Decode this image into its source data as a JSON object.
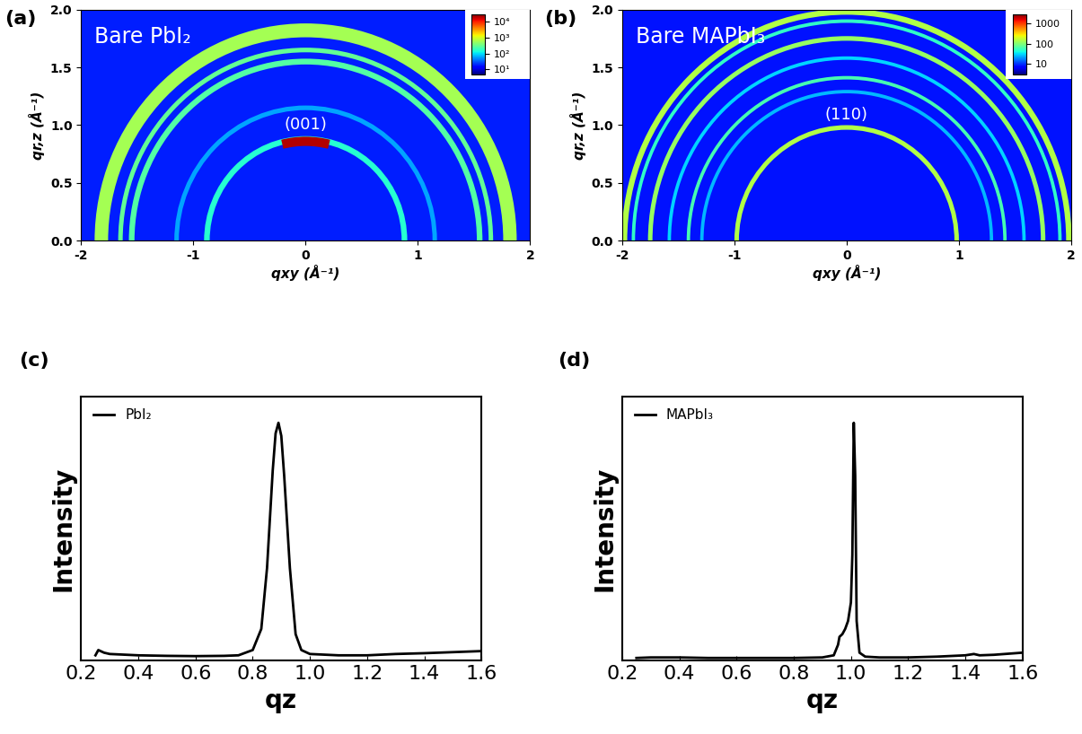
{
  "chart_data": [
    {
      "type": "ring_map",
      "panel_label": "(a)",
      "title": "Bare PbI₂",
      "x_label": "qxy (Å⁻¹)",
      "y_label": "qr,z (Å⁻¹)",
      "xlim": [
        -2,
        2
      ],
      "xticks": [
        -2,
        -1,
        0,
        1,
        2
      ],
      "ylim": [
        0,
        2
      ],
      "yticks": [
        {
          "value": 0,
          "label": "0.0"
        },
        {
          "value": 0.5,
          "label": "0.5"
        },
        {
          "value": 1,
          "label": "1.0"
        },
        {
          "value": 1.5,
          "label": "1.5"
        },
        {
          "value": 2,
          "label": "2.0"
        }
      ],
      "log": true,
      "colorbar_range": [
        5,
        30000
      ],
      "colorbar_ticks": [
        {
          "value": 10,
          "label": "10¹"
        },
        {
          "value": 100,
          "label": "10²"
        },
        {
          "value": 1000,
          "label": "10³"
        },
        {
          "value": 10000,
          "label": "10⁴"
        }
      ],
      "background": 19,
      "rings": [
        {
          "q": 0.88,
          "width": 0.05,
          "intensity": 160
        },
        {
          "q": 1.15,
          "width": 0.04,
          "intensity": 60
        },
        {
          "q": 1.55,
          "width": 0.05,
          "intensity": 250
        },
        {
          "q": 1.65,
          "width": 0.04,
          "intensity": 300
        },
        {
          "q": 1.82,
          "width": 0.12,
          "intensity": 600
        }
      ],
      "arcs": [
        {
          "q": 0.86,
          "width": 0.08,
          "angle_range": [
            76,
            104
          ],
          "intensity": 20000
        }
      ],
      "annotation": {
        "text": "(001)",
        "x": 0,
        "y": 0.93
      }
    },
    {
      "type": "ring_map",
      "panel_label": "(b)",
      "title": "Bare MAPbI₃",
      "x_label": "qxy (Å⁻¹)",
      "y_label": "qr,z (Å⁻¹)",
      "xlim": [
        -2,
        2
      ],
      "xticks": [
        -2,
        -1,
        0,
        1,
        2
      ],
      "ylim": [
        0,
        2
      ],
      "yticks": [
        {
          "value": 0,
          "label": "0.0"
        },
        {
          "value": 0.5,
          "label": "0.5"
        },
        {
          "value": 1,
          "label": "1.0"
        },
        {
          "value": 1.5,
          "label": "1.5"
        },
        {
          "value": 2,
          "label": "2.0"
        }
      ],
      "log": true,
      "colorbar_range": [
        3,
        3000
      ],
      "colorbar_ticks": [
        10,
        100,
        1000
      ],
      "background": 8,
      "rings": [
        {
          "q": 0.98,
          "width": 0.04,
          "intensity": 150
        },
        {
          "q": 1.29,
          "width": 0.03,
          "intensity": 25
        },
        {
          "q": 1.41,
          "width": 0.03,
          "intensity": 60
        },
        {
          "q": 1.58,
          "width": 0.03,
          "intensity": 30
        },
        {
          "q": 1.75,
          "width": 0.04,
          "intensity": 120
        },
        {
          "q": 1.9,
          "width": 0.03,
          "intensity": 50
        },
        {
          "q": 1.98,
          "width": 0.05,
          "intensity": 150
        }
      ],
      "arcs": [],
      "annotation": {
        "text": "(110)",
        "x": 0,
        "y": 1.02
      }
    },
    {
      "type": "line",
      "panel_label": "(c)",
      "x_label": "qz",
      "y_label": "Intensity",
      "xlim": [
        0.2,
        1.6
      ],
      "xticks": [
        0.2,
        0.4,
        0.6,
        0.8,
        1.0,
        1.2,
        1.4,
        1.6
      ],
      "ylim": [
        0,
        1
      ],
      "tick_labels": "x",
      "legend": "upper left",
      "series": [
        {
          "name": "PbI₂",
          "color": "#000000",
          "x": [
            0.25,
            0.26,
            0.28,
            0.3,
            0.4,
            0.5,
            0.6,
            0.7,
            0.75,
            0.8,
            0.83,
            0.85,
            0.87,
            0.88,
            0.89,
            0.9,
            0.91,
            0.93,
            0.95,
            0.97,
            1.0,
            1.1,
            1.2,
            1.3,
            1.4,
            1.5,
            1.6
          ],
          "values": [
            0.02,
            0.04,
            0.03,
            0.025,
            0.02,
            0.018,
            0.017,
            0.018,
            0.02,
            0.04,
            0.12,
            0.35,
            0.72,
            0.86,
            0.9,
            0.85,
            0.7,
            0.35,
            0.1,
            0.04,
            0.025,
            0.02,
            0.02,
            0.025,
            0.028,
            0.032,
            0.036
          ]
        }
      ]
    },
    {
      "type": "line",
      "panel_label": "(d)",
      "x_label": "qz",
      "y_label": "Intensity",
      "xlim": [
        0.2,
        1.6
      ],
      "xticks": [
        0.2,
        0.4,
        0.6,
        0.8,
        1.0,
        1.2,
        1.4,
        1.6
      ],
      "ylim": [
        0,
        1
      ],
      "tick_labels": "x",
      "legend": "upper left",
      "series": [
        {
          "name": "MAPbI₃",
          "color": "#000000",
          "x": [
            0.25,
            0.3,
            0.4,
            0.5,
            0.6,
            0.7,
            0.8,
            0.9,
            0.94,
            0.955,
            0.96,
            0.97,
            0.98,
            0.99,
            1.0,
            1.005,
            1.01,
            1.015,
            1.02,
            1.03,
            1.05,
            1.1,
            1.2,
            1.3,
            1.4,
            1.43,
            1.45,
            1.5,
            1.6
          ],
          "values": [
            0.01,
            0.012,
            0.012,
            0.01,
            0.01,
            0.01,
            0.01,
            0.012,
            0.02,
            0.06,
            0.09,
            0.1,
            0.12,
            0.15,
            0.22,
            0.4,
            0.9,
            0.7,
            0.15,
            0.03,
            0.015,
            0.012,
            0.012,
            0.015,
            0.02,
            0.025,
            0.02,
            0.022,
            0.03
          ]
        }
      ]
    }
  ]
}
